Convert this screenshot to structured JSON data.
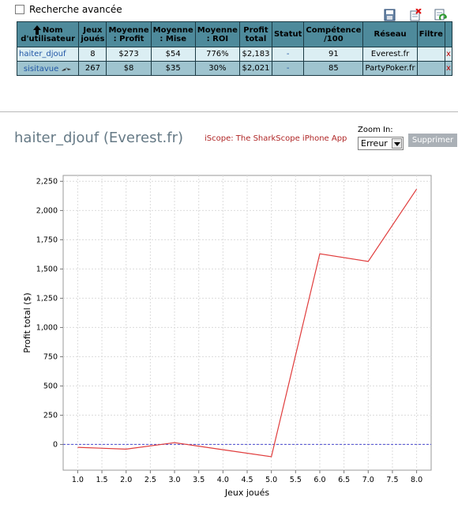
{
  "advanced_search": {
    "label": "Recherche avancée",
    "checked": false
  },
  "toolbar_icons": [
    "save-icon",
    "delete-icon",
    "refresh-icon"
  ],
  "table": {
    "headers": [
      "Nom d'utilisateur",
      "Jeux joués",
      "Moyenne : Profit",
      "Moyenne : Mise",
      "Moyenne : ROI",
      "Profit total",
      "Statut",
      "Compétence /100",
      "Réseau",
      "Filtre"
    ],
    "rows": [
      {
        "user": "haiter_djouf",
        "games": "8",
        "avg_profit": "$273",
        "avg_stake": "$54",
        "avg_roi": "776%",
        "total_profit": "$2,183",
        "status": "-",
        "skill": "91",
        "network": "Everest.fr",
        "filter": "",
        "delete": "x"
      },
      {
        "user": "sisitavue",
        "games": "267",
        "avg_profit": "$8",
        "avg_stake": "$35",
        "avg_roi": "30%",
        "total_profit": "$2,021",
        "status": "-",
        "skill": "85",
        "network": "PartyPoker.fr",
        "filter": "",
        "delete": "x"
      }
    ]
  },
  "chart_header": {
    "player_title": "haiter_djouf (Everest.fr)",
    "iscope_link": "iScope: The SharkScope iPhone App",
    "zoom_label": "Zoom In:",
    "zoom_value": "Erreur",
    "clear_button": "Supprimer"
  },
  "chart_data": {
    "type": "line",
    "xlabel": "Jeux joués",
    "ylabel": "Profit total ($)",
    "xlim": [
      0.7,
      8.3
    ],
    "ylim": [
      -220,
      2300
    ],
    "x_ticks": [
      "1.0",
      "1.5",
      "2.0",
      "2.5",
      "3.0",
      "3.5",
      "4.0",
      "4.5",
      "5.0",
      "5.5",
      "6.0",
      "6.5",
      "7.0",
      "7.5",
      "8.0"
    ],
    "y_ticks": [
      "2,250",
      "2,000",
      "1,750",
      "1,500",
      "1,250",
      "1,000",
      "750",
      "500",
      "250",
      "0"
    ],
    "series": [
      {
        "x": [
          1,
          2,
          3,
          4,
          5,
          6,
          7,
          8
        ],
        "y": [
          -25,
          -40,
          15,
          -45,
          -105,
          1630,
          1565,
          2183
        ],
        "color": "#e03c3c"
      }
    ],
    "zero_line_color": "#4a4ad0",
    "grid": true
  }
}
